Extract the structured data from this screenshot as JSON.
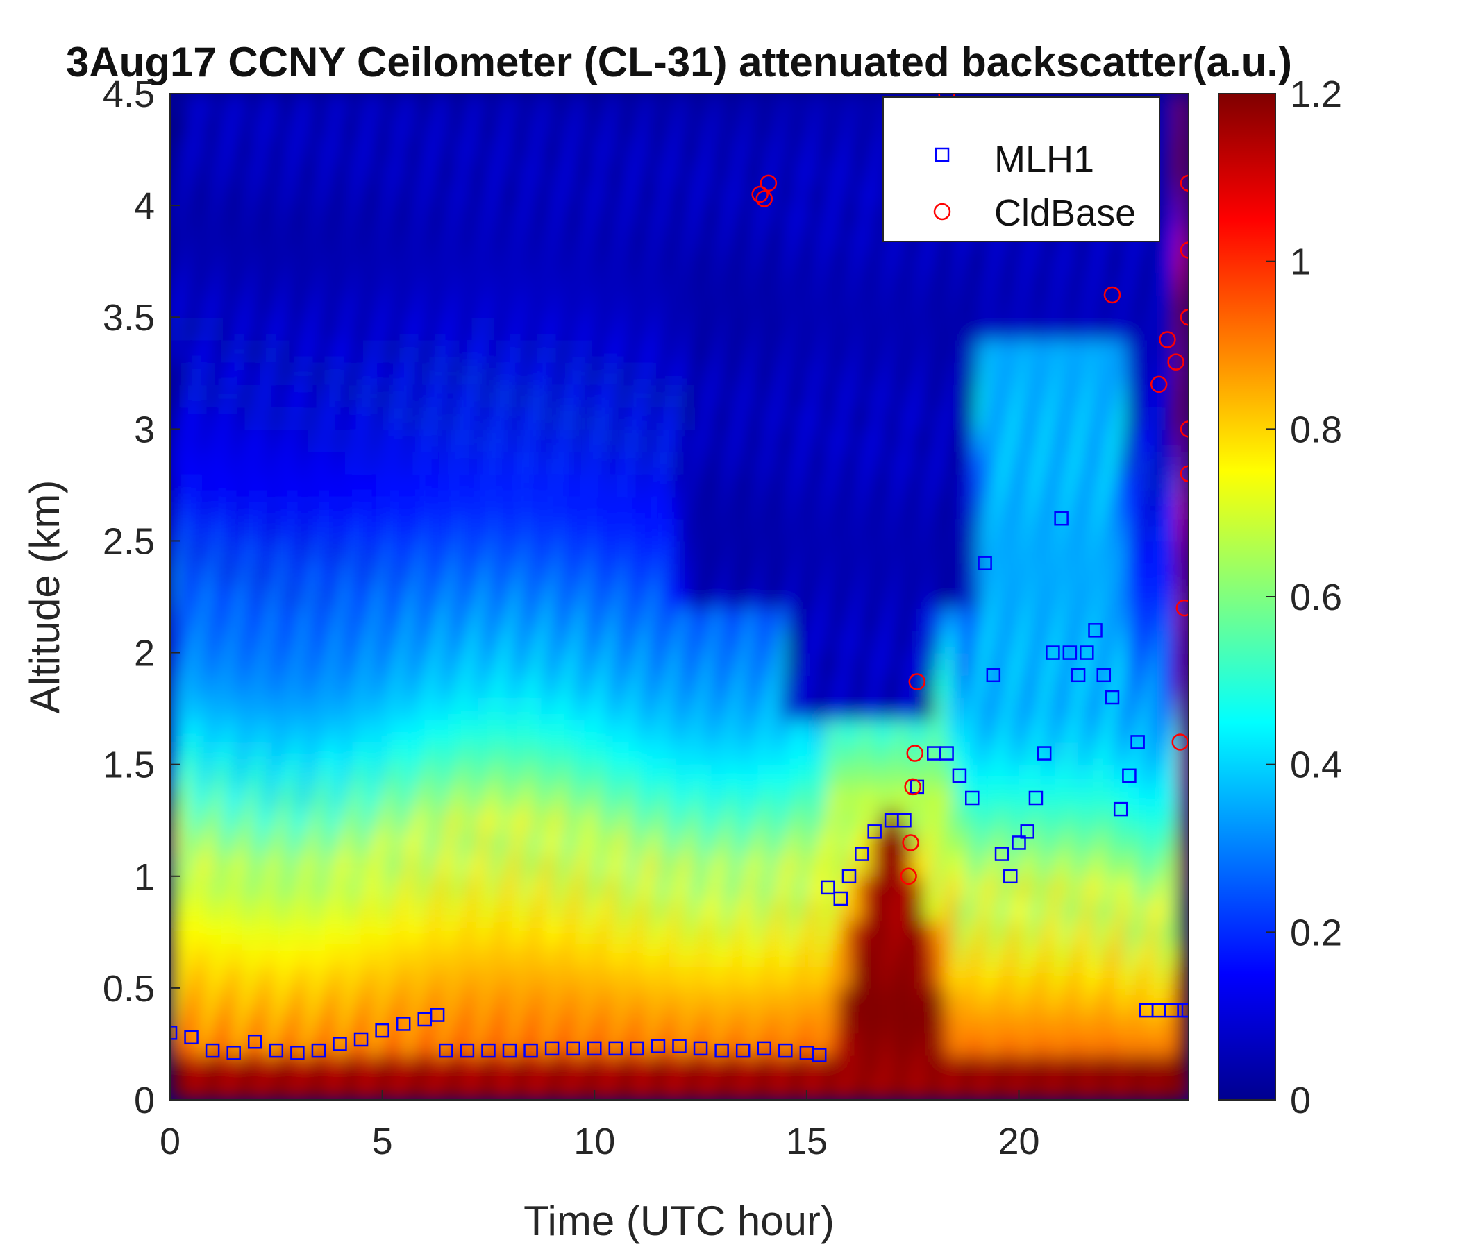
{
  "chart_data": {
    "type": "heatmap",
    "title": "3Aug17 CCNY Ceilometer (CL-31) attenuated backscatter(a.u.)",
    "xlabel": "Time (UTC hour)",
    "ylabel": "Altitude (km)",
    "xlim": [
      0,
      24
    ],
    "ylim": [
      0,
      4.5
    ],
    "x_ticks": [
      "0",
      "5",
      "10",
      "15",
      "20"
    ],
    "x_tick_values": [
      0,
      5,
      10,
      15,
      20
    ],
    "y_ticks": [
      "0",
      "0.5",
      "1",
      "1.5",
      "2",
      "2.5",
      "3",
      "3.5",
      "4",
      "4.5"
    ],
    "y_tick_values": [
      0,
      0.5,
      1,
      1.5,
      2,
      2.5,
      3,
      3.5,
      4,
      4.5
    ],
    "colorbar": {
      "colormap": "jet",
      "range": [
        0,
        1.2
      ],
      "ticks": [
        "0",
        "0.2",
        "0.4",
        "0.6",
        "0.8",
        "1",
        "1.2"
      ],
      "tick_values": [
        0,
        0.2,
        0.4,
        0.6,
        0.8,
        1.0,
        1.2
      ]
    },
    "legend": {
      "position": "top-right",
      "entries": [
        {
          "label": "MLH1",
          "marker": "square",
          "color": "#0000ff"
        },
        {
          "label": "CldBase",
          "marker": "circle",
          "color": "#ff0000"
        }
      ]
    },
    "series": [
      {
        "name": "MLH1",
        "marker": "square",
        "color": "#0000ff",
        "x": [
          0,
          0.5,
          1,
          1.5,
          2,
          2.5,
          3,
          3.5,
          4,
          4.5,
          5,
          5.5,
          6,
          6.3,
          6.5,
          7,
          7.5,
          8,
          8.5,
          9,
          9.5,
          10,
          10.5,
          11,
          11.5,
          12,
          12.5,
          13,
          13.5,
          14,
          14.5,
          15,
          15.3,
          15.5,
          15.8,
          16,
          16.3,
          16.6,
          17,
          17.3,
          17.6,
          18,
          18.3,
          18.6,
          18.9,
          19.2,
          19.4,
          19.6,
          19.8,
          20,
          20.2,
          20.4,
          20.6,
          20.8,
          21,
          21.2,
          21.4,
          21.6,
          21.8,
          22,
          22.2,
          22.4,
          22.6,
          22.8,
          23,
          23.3,
          23.6,
          23.9,
          24
        ],
        "y": [
          0.3,
          0.28,
          0.22,
          0.21,
          0.26,
          0.22,
          0.21,
          0.22,
          0.25,
          0.27,
          0.31,
          0.34,
          0.36,
          0.38,
          0.22,
          0.22,
          0.22,
          0.22,
          0.22,
          0.23,
          0.23,
          0.23,
          0.23,
          0.23,
          0.24,
          0.24,
          0.23,
          0.22,
          0.22,
          0.23,
          0.22,
          0.21,
          0.2,
          0.95,
          0.9,
          1.0,
          1.1,
          1.2,
          1.25,
          1.25,
          1.4,
          1.55,
          1.55,
          1.45,
          1.35,
          2.4,
          1.9,
          1.1,
          1.0,
          1.15,
          1.2,
          1.35,
          1.55,
          2.0,
          2.6,
          2.0,
          1.9,
          2.0,
          2.1,
          1.9,
          1.8,
          1.3,
          1.45,
          1.6,
          0.4,
          0.4,
          0.4,
          0.4,
          0.4
        ]
      },
      {
        "name": "CldBase",
        "marker": "circle",
        "color": "#ff0000",
        "x": [
          13.9,
          14.0,
          14.1,
          17.4,
          17.45,
          17.5,
          17.55,
          17.6,
          18.3,
          22.2,
          23.3,
          23.5,
          23.7,
          23.8,
          23.9,
          24.0,
          24.05,
          24.1,
          24.15,
          24.2
        ],
        "y": [
          4.05,
          4.03,
          4.1,
          1.0,
          1.15,
          1.4,
          1.55,
          1.87,
          4.5,
          3.6,
          3.2,
          3.4,
          3.3,
          1.6,
          2.2,
          2.8,
          3.0,
          3.5,
          3.8,
          4.1
        ]
      }
    ]
  }
}
